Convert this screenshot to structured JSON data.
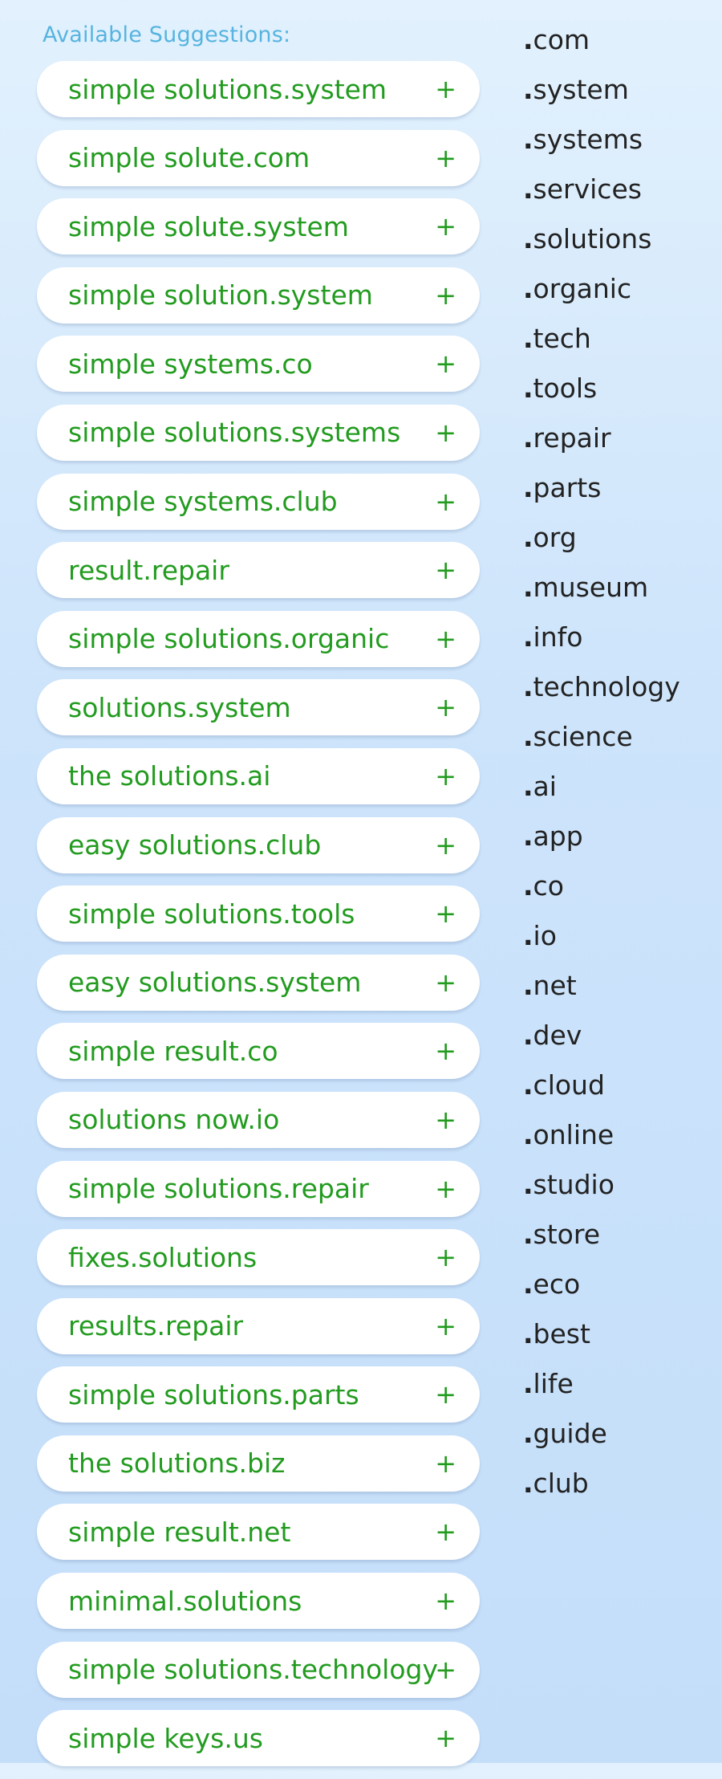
{
  "heading": "Available Suggestions:",
  "suggestions": [
    "simple solutions.system",
    "simple solute.com",
    "simple solute.system",
    "simple solution.system",
    "simple systems.co",
    "simple solutions.systems",
    "simple systems.club",
    "result.repair",
    "simple solutions.organic",
    "solutions.system",
    "the solutions.ai",
    "easy solutions.club",
    "simple solutions.tools",
    "easy solutions.system",
    "simple result.co",
    "solutions now.io",
    "simple solutions.repair",
    "fixes.solutions",
    "results.repair",
    "simple solutions.parts",
    "the solutions.biz",
    "simple result.net",
    "minimal.solutions",
    "simple solutions.technology",
    "simple keys.us"
  ],
  "add_symbol": "+",
  "tlds": [
    "com",
    "system",
    "systems",
    "services",
    "solutions",
    "organic",
    "tech",
    "tools",
    "repair",
    "parts",
    "org",
    "museum",
    "info",
    "technology",
    "science",
    "ai",
    "app",
    "co",
    "io",
    "net",
    "dev",
    "cloud",
    "online",
    "studio",
    "store",
    "eco",
    "best",
    "life",
    "guide",
    "club"
  ],
  "colors": {
    "suggestion_text": "#229b1f",
    "heading_text": "#56b4e0",
    "tld_text": "#222222"
  }
}
